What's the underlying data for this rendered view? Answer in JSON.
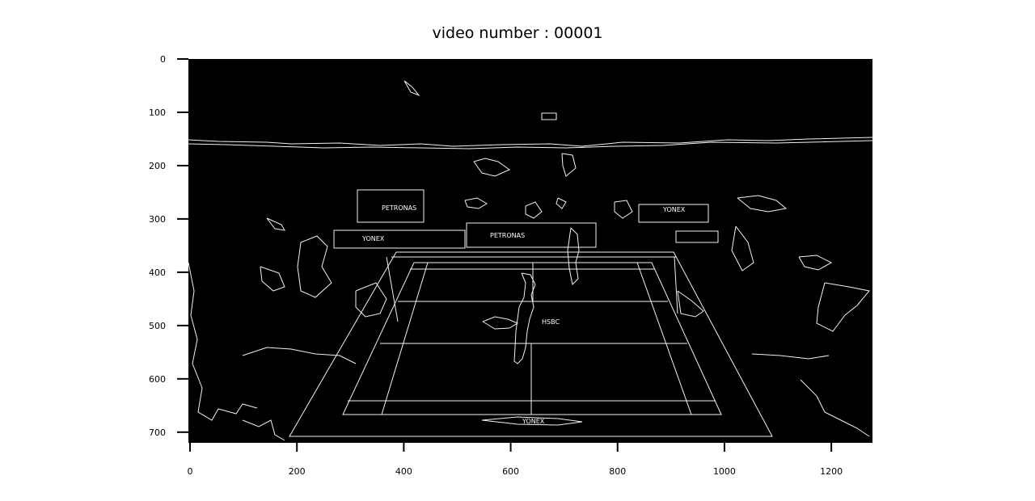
{
  "chart_data": {
    "type": "image",
    "title": "video number : 00001",
    "xlabel": "",
    "ylabel": "",
    "xlim": [
      0,
      1280
    ],
    "ylim": [
      720,
      0
    ],
    "x_ticks": [
      0,
      200,
      400,
      600,
      800,
      1000,
      1200
    ],
    "y_ticks": [
      0,
      100,
      200,
      300,
      400,
      500,
      600,
      700
    ],
    "grid": false,
    "colors": {
      "background": "#000000",
      "edges": "#ffffff"
    },
    "signage": [
      "PETRONAS",
      "YONEX",
      "HSBC"
    ]
  }
}
